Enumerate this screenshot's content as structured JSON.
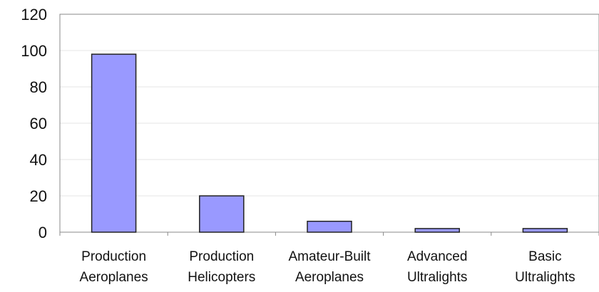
{
  "chart_data": {
    "type": "bar",
    "categories": [
      [
        "Production",
        "Aeroplanes"
      ],
      [
        "Production",
        "Helicopters"
      ],
      [
        "Amateur-Built",
        "Aeroplanes"
      ],
      [
        "Advanced",
        "Ultralights"
      ],
      [
        "Basic",
        "Ultralights"
      ]
    ],
    "values": [
      98,
      20,
      6,
      2,
      2
    ],
    "ylim": [
      0,
      120
    ],
    "yticks": [
      0,
      20,
      40,
      60,
      80,
      100,
      120
    ],
    "grid": true,
    "legend": "none",
    "colors": {
      "bar_fill": "#9999ff",
      "bar_stroke": "#222222",
      "grid": "#e6e6e6",
      "frame": "#888888",
      "text": "#111111"
    }
  }
}
